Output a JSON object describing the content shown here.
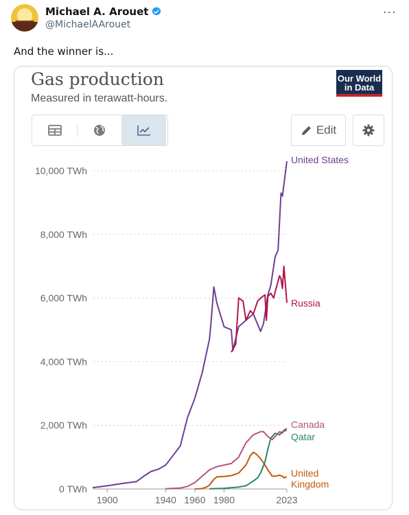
{
  "tweet": {
    "author_name": "Michael A. Arouet",
    "handle": "@MichaelAArouet",
    "more_glyph": "···",
    "text": "And the winner is..."
  },
  "card": {
    "title": "Gas production",
    "subtitle": "Measured in terawatt-hours.",
    "logo_line1": "Our World",
    "logo_line2": "in Data",
    "edit_label": "Edit",
    "icons": {
      "table": "table-icon",
      "map": "globe-icon",
      "chart": "line-chart-icon",
      "edit": "pencil-icon",
      "settings": "gear-icon"
    }
  },
  "chart_data": {
    "type": "line",
    "title": "Gas production",
    "subtitle": "Measured in terawatt-hours.",
    "xlabel": "",
    "ylabel": "",
    "xlim": [
      1890,
      2023
    ],
    "ylim": [
      0,
      10000
    ],
    "x_ticks": [
      1900,
      1940,
      1960,
      1980,
      2023
    ],
    "y_ticks": [
      0,
      2000,
      4000,
      6000,
      8000,
      10000
    ],
    "y_tick_labels": [
      "0 TWh",
      "2,000 TWh",
      "4,000 TWh",
      "6,000 TWh",
      "8,000 TWh",
      "10,000 TWh"
    ],
    "grid": "horizontal-dashed",
    "legend": "end-of-line labels",
    "series": [
      {
        "name": "United States",
        "color": "#6d3e91",
        "x": [
          1890,
          1900,
          1910,
          1920,
          1925,
          1930,
          1935,
          1940,
          1945,
          1950,
          1955,
          1960,
          1965,
          1970,
          1971,
          1973,
          1975,
          1980,
          1985,
          1986,
          1990,
          1995,
          2000,
          2005,
          2007,
          2010,
          2012,
          2015,
          2017,
          2019,
          2020,
          2023
        ],
        "y": [
          40,
          100,
          170,
          230,
          400,
          550,
          620,
          750,
          1050,
          1350,
          2250,
          2850,
          3650,
          4700,
          5200,
          6350,
          5850,
          5100,
          5000,
          4350,
          5100,
          5300,
          5500,
          4950,
          5200,
          6100,
          6400,
          7300,
          7500,
          9300,
          9200,
          10300
        ]
      },
      {
        "name": "Russia",
        "color": "#b0144a",
        "x": [
          1985,
          1988,
          1990,
          1993,
          1995,
          1998,
          2000,
          2003,
          2005,
          2008,
          2009,
          2010,
          2012,
          2014,
          2015,
          2018,
          2019,
          2020,
          2021,
          2023
        ],
        "y": [
          4300,
          4550,
          6000,
          5900,
          5300,
          5600,
          5500,
          5900,
          6000,
          6100,
          5300,
          6050,
          6150,
          6000,
          6200,
          6700,
          6600,
          6300,
          7000,
          5850
        ]
      },
      {
        "name": "Canada",
        "color": "#b5527f",
        "x": [
          1940,
          1950,
          1955,
          1960,
          1965,
          1970,
          1975,
          1980,
          1985,
          1990,
          1995,
          2000,
          2005,
          2007,
          2010,
          2013,
          2015,
          2018,
          2020,
          2021,
          2023
        ],
        "y": [
          5,
          30,
          80,
          200,
          400,
          600,
          700,
          750,
          800,
          1000,
          1450,
          1700,
          1800,
          1800,
          1650,
          1550,
          1650,
          1800,
          1750,
          1850,
          1900
        ]
      },
      {
        "name": "Qatar",
        "color": "#2b8465",
        "x": [
          1970,
          1980,
          1985,
          1990,
          1995,
          2000,
          2003,
          2005,
          2008,
          2010,
          2012,
          2015,
          2018,
          2020,
          2023
        ],
        "y": [
          5,
          20,
          40,
          60,
          100,
          250,
          350,
          500,
          850,
          1250,
          1600,
          1750,
          1700,
          1800,
          1850
        ]
      },
      {
        "name": "United Kingdom",
        "color": "#c15a0c",
        "x": [
          1960,
          1965,
          1968,
          1970,
          1973,
          1975,
          1980,
          1985,
          1990,
          1995,
          1998,
          2000,
          2002,
          2005,
          2008,
          2010,
          2013,
          2015,
          2018,
          2020,
          2021,
          2023
        ],
        "y": [
          0,
          10,
          60,
          120,
          300,
          380,
          390,
          420,
          500,
          750,
          1050,
          1150,
          1100,
          950,
          750,
          600,
          400,
          400,
          430,
          400,
          350,
          380
        ]
      }
    ],
    "end_labels": [
      {
        "series": "United States",
        "lines": [
          "United States"
        ]
      },
      {
        "series": "Russia",
        "lines": [
          "Russia"
        ]
      },
      {
        "series": "Canada",
        "lines": [
          "Canada"
        ]
      },
      {
        "series": "Qatar",
        "lines": [
          "Qatar"
        ]
      },
      {
        "series": "United Kingdom",
        "lines": [
          "United",
          "Kingdom"
        ]
      }
    ]
  }
}
